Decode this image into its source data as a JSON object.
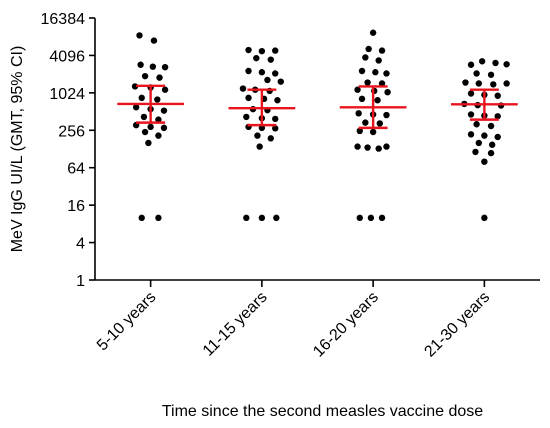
{
  "chart_data": {
    "type": "scatter",
    "title": "",
    "ylabel": "MeV IgG UI/L (GMT, 95% CI)",
    "xlabel": "Time since the second measles vaccine dose",
    "y_scale": "log2",
    "ylim": [
      1,
      16384
    ],
    "y_ticks": [
      1,
      4,
      16,
      64,
      256,
      1024,
      4096,
      16384
    ],
    "y_tick_labels": [
      "1",
      "4",
      "16",
      "64",
      "256",
      "1024",
      "4096",
      "16384"
    ],
    "categories": [
      "5-10 years",
      "11-15 years",
      "16-20 years",
      "21-30 years"
    ],
    "grid": false,
    "legend": "none",
    "summary_color": "#e8141e",
    "point_color": "#000000",
    "groups": [
      {
        "category": "5-10 years",
        "gmt": 680,
        "ci_low": 340,
        "ci_high": 1330,
        "points": [
          {
            "y": 8600,
            "x": -0.1
          },
          {
            "y": 7100,
            "x": 0.03
          },
          {
            "y": 2900,
            "x": -0.09
          },
          {
            "y": 2700,
            "x": 0.02
          },
          {
            "y": 2650,
            "x": 0.13
          },
          {
            "y": 1900,
            "x": -0.05
          },
          {
            "y": 1800,
            "x": 0.08
          },
          {
            "y": 1300,
            "x": -0.14
          },
          {
            "y": 1250,
            "x": 0.0
          },
          {
            "y": 1150,
            "x": 0.13
          },
          {
            "y": 850,
            "x": -0.08
          },
          {
            "y": 800,
            "x": 0.06
          },
          {
            "y": 600,
            "x": -0.13
          },
          {
            "y": 560,
            "x": 0.0
          },
          {
            "y": 530,
            "x": 0.12
          },
          {
            "y": 420,
            "x": -0.06
          },
          {
            "y": 380,
            "x": 0.07
          },
          {
            "y": 310,
            "x": -0.13
          },
          {
            "y": 290,
            "x": 0.0
          },
          {
            "y": 280,
            "x": 0.12
          },
          {
            "y": 240,
            "x": -0.05
          },
          {
            "y": 210,
            "x": 0.07
          },
          {
            "y": 160,
            "x": -0.02
          },
          {
            "y": 10,
            "x": -0.08
          },
          {
            "y": 10,
            "x": 0.07
          }
        ]
      },
      {
        "category": "11-15 years",
        "gmt": 580,
        "ci_low": 310,
        "ci_high": 1150,
        "points": [
          {
            "y": 5000,
            "x": -0.12
          },
          {
            "y": 4800,
            "x": 0.0
          },
          {
            "y": 4900,
            "x": 0.12
          },
          {
            "y": 3700,
            "x": -0.05
          },
          {
            "y": 3500,
            "x": 0.08
          },
          {
            "y": 2300,
            "x": -0.12
          },
          {
            "y": 2200,
            "x": 0.0
          },
          {
            "y": 2100,
            "x": 0.12
          },
          {
            "y": 1650,
            "x": 0.05
          },
          {
            "y": 1550,
            "x": 0.17
          },
          {
            "y": 1200,
            "x": -0.17
          },
          {
            "y": 1150,
            "x": -0.06
          },
          {
            "y": 1100,
            "x": 0.07
          },
          {
            "y": 850,
            "x": -0.12
          },
          {
            "y": 820,
            "x": 0.02
          },
          {
            "y": 780,
            "x": 0.14
          },
          {
            "y": 560,
            "x": -0.08
          },
          {
            "y": 540,
            "x": 0.05
          },
          {
            "y": 420,
            "x": -0.14
          },
          {
            "y": 400,
            "x": 0.0
          },
          {
            "y": 390,
            "x": 0.12
          },
          {
            "y": 290,
            "x": -0.12
          },
          {
            "y": 280,
            "x": 0.0
          },
          {
            "y": 275,
            "x": 0.12
          },
          {
            "y": 210,
            "x": -0.04
          },
          {
            "y": 190,
            "x": 0.08
          },
          {
            "y": 140,
            "x": -0.02
          },
          {
            "y": 10,
            "x": -0.14
          },
          {
            "y": 10,
            "x": 0.0
          },
          {
            "y": 10,
            "x": 0.13
          }
        ]
      },
      {
        "category": "16-20 years",
        "gmt": 600,
        "ci_low": 280,
        "ci_high": 1300,
        "points": [
          {
            "y": 9500,
            "x": 0.0
          },
          {
            "y": 5200,
            "x": -0.04
          },
          {
            "y": 4900,
            "x": 0.08
          },
          {
            "y": 3800,
            "x": -0.07
          },
          {
            "y": 3400,
            "x": 0.05
          },
          {
            "y": 2300,
            "x": -0.1
          },
          {
            "y": 2200,
            "x": 0.02
          },
          {
            "y": 2100,
            "x": 0.12
          },
          {
            "y": 1500,
            "x": -0.05
          },
          {
            "y": 1450,
            "x": 0.08
          },
          {
            "y": 1150,
            "x": -0.14
          },
          {
            "y": 1100,
            "x": 0.01
          },
          {
            "y": 1050,
            "x": 0.13
          },
          {
            "y": 820,
            "x": -0.1
          },
          {
            "y": 780,
            "x": 0.04
          },
          {
            "y": 480,
            "x": -0.13
          },
          {
            "y": 460,
            "x": 0.0
          },
          {
            "y": 450,
            "x": 0.12
          },
          {
            "y": 340,
            "x": -0.07
          },
          {
            "y": 330,
            "x": 0.06
          },
          {
            "y": 250,
            "x": -0.12
          },
          {
            "y": 240,
            "x": 0.0
          },
          {
            "y": 140,
            "x": -0.14
          },
          {
            "y": 135,
            "x": -0.05
          },
          {
            "y": 130,
            "x": 0.05
          },
          {
            "y": 140,
            "x": 0.12
          },
          {
            "y": 10,
            "x": -0.12
          },
          {
            "y": 10,
            "x": -0.02
          },
          {
            "y": 10,
            "x": 0.08
          }
        ]
      },
      {
        "category": "21-30 years",
        "gmt": 670,
        "ci_low": 380,
        "ci_high": 1150,
        "points": [
          {
            "y": 3300,
            "x": -0.02
          },
          {
            "y": 2900,
            "x": -0.12
          },
          {
            "y": 3100,
            "x": 0.1
          },
          {
            "y": 2950,
            "x": 0.2
          },
          {
            "y": 2100,
            "x": -0.07
          },
          {
            "y": 2000,
            "x": 0.06
          },
          {
            "y": 1500,
            "x": -0.17
          },
          {
            "y": 1450,
            "x": -0.05
          },
          {
            "y": 1400,
            "x": 0.08
          },
          {
            "y": 1450,
            "x": 0.2
          },
          {
            "y": 1000,
            "x": -0.12
          },
          {
            "y": 950,
            "x": 0.0
          },
          {
            "y": 920,
            "x": 0.12
          },
          {
            "y": 680,
            "x": -0.18
          },
          {
            "y": 650,
            "x": -0.06
          },
          {
            "y": 640,
            "x": 0.15
          },
          {
            "y": 460,
            "x": -0.12
          },
          {
            "y": 440,
            "x": 0.0
          },
          {
            "y": 430,
            "x": 0.12
          },
          {
            "y": 320,
            "x": -0.07
          },
          {
            "y": 300,
            "x": 0.06
          },
          {
            "y": 220,
            "x": -0.12
          },
          {
            "y": 210,
            "x": 0.0
          },
          {
            "y": 200,
            "x": 0.12
          },
          {
            "y": 160,
            "x": -0.05
          },
          {
            "y": 150,
            "x": 0.07
          },
          {
            "y": 115,
            "x": -0.08
          },
          {
            "y": 110,
            "x": 0.06
          },
          {
            "y": 80,
            "x": 0.0
          },
          {
            "y": 10,
            "x": 0.0
          }
        ]
      }
    ]
  }
}
